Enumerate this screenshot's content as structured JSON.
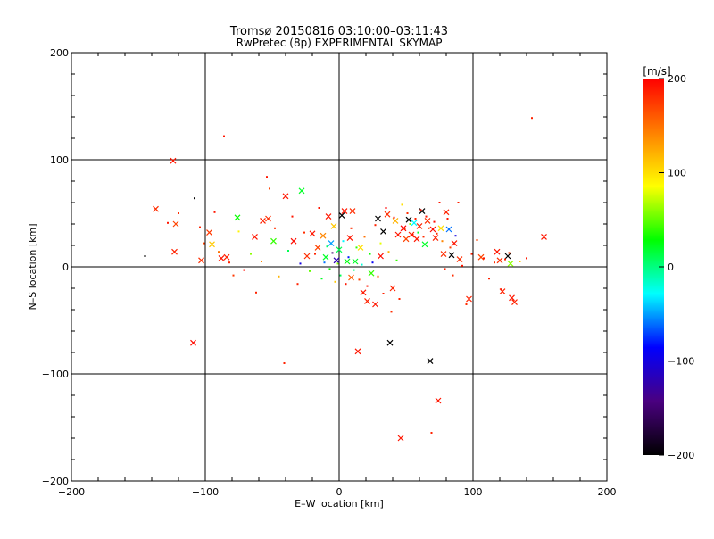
{
  "chart_data": {
    "type": "scatter",
    "title": "Tromsø 20150816 03:10:00–03:11:43",
    "subtitle": "RwPretec (8p) EXPERIMENTAL SKYMAP",
    "xlabel": "E–W location [km]",
    "ylabel": "N–S location [km]",
    "xlim": [
      -200,
      200
    ],
    "ylim": [
      -200,
      200
    ],
    "xticks": [
      -200,
      -100,
      0,
      100,
      200
    ],
    "yticks": [
      -200,
      -100,
      0,
      100,
      200
    ],
    "grid": true,
    "colorbar": {
      "label": "[m/s]",
      "min": -200,
      "max": 200,
      "ticks": [
        -200,
        -100,
        0,
        100,
        200
      ],
      "colormap": [
        "#000000",
        "#4a0080",
        "#0000ff",
        "#00ffff",
        "#00ff00",
        "#ffff00",
        "#ff8000",
        "#ff0000"
      ]
    },
    "series": [
      {
        "marker": "x",
        "points": [
          [
            -137,
            54,
            180
          ],
          [
            -124,
            99,
            190
          ],
          [
            -122,
            40,
            170
          ],
          [
            -123,
            14,
            185
          ],
          [
            -109,
            -71,
            195
          ],
          [
            -103,
            6,
            180
          ],
          [
            -97,
            32,
            175
          ],
          [
            -95,
            21,
            110
          ],
          [
            -88,
            8,
            190
          ],
          [
            -84,
            9,
            185
          ],
          [
            -76,
            46,
            30
          ],
          [
            -63,
            28,
            190
          ],
          [
            -57,
            43,
            185
          ],
          [
            -53,
            45,
            180
          ],
          [
            -49,
            24,
            40
          ],
          [
            -40,
            66,
            190
          ],
          [
            -34,
            24,
            195
          ],
          [
            -28,
            71,
            20
          ],
          [
            -24,
            10,
            180
          ],
          [
            -20,
            31,
            190
          ],
          [
            -16,
            18,
            170
          ],
          [
            -12,
            29,
            140
          ],
          [
            -10,
            9,
            20
          ],
          [
            -8,
            47,
            190
          ],
          [
            -6,
            22,
            -50
          ],
          [
            -4,
            38,
            110
          ],
          [
            -2,
            6,
            -120
          ],
          [
            0,
            16,
            10
          ],
          [
            2,
            48,
            -200
          ],
          [
            4,
            52,
            190
          ],
          [
            6,
            5,
            25
          ],
          [
            8,
            27,
            190
          ],
          [
            9,
            -10,
            160
          ],
          [
            10,
            52,
            180
          ],
          [
            12,
            5,
            20
          ],
          [
            14,
            -79,
            190
          ],
          [
            16,
            18,
            100
          ],
          [
            18,
            -24,
            190
          ],
          [
            21,
            -32,
            185
          ],
          [
            24,
            -6,
            40
          ],
          [
            27,
            -35,
            190
          ],
          [
            29,
            45,
            -200
          ],
          [
            31,
            10,
            195
          ],
          [
            33,
            33,
            -200
          ],
          [
            36,
            49,
            180
          ],
          [
            38,
            -71,
            -200
          ],
          [
            40,
            -20,
            185
          ],
          [
            42,
            43,
            120
          ],
          [
            44,
            30,
            190
          ],
          [
            46,
            -160,
            190
          ],
          [
            48,
            36,
            200
          ],
          [
            50,
            26,
            170
          ],
          [
            52,
            44,
            -200
          ],
          [
            54,
            30,
            185
          ],
          [
            56,
            41,
            -30
          ],
          [
            58,
            26,
            190
          ],
          [
            60,
            38,
            185
          ],
          [
            62,
            52,
            -200
          ],
          [
            64,
            21,
            20
          ],
          [
            66,
            43,
            180
          ],
          [
            68,
            -88,
            -200
          ],
          [
            70,
            35,
            195
          ],
          [
            72,
            27,
            185
          ],
          [
            74,
            -125,
            190
          ],
          [
            76,
            36,
            100
          ],
          [
            78,
            12,
            180
          ],
          [
            80,
            51,
            185
          ],
          [
            82,
            35,
            -60
          ],
          [
            84,
            11,
            -200
          ],
          [
            86,
            22,
            190
          ],
          [
            90,
            7,
            180
          ],
          [
            97,
            -30,
            185
          ],
          [
            106,
            9,
            170
          ],
          [
            118,
            14,
            190
          ],
          [
            120,
            6,
            180
          ],
          [
            122,
            -23,
            185
          ],
          [
            126,
            10,
            -200
          ],
          [
            128,
            3,
            60
          ],
          [
            129,
            -29,
            190
          ],
          [
            131,
            -33,
            185
          ],
          [
            153,
            28,
            190
          ]
        ]
      },
      {
        "marker": "dot",
        "points": [
          [
            -145,
            10,
            -200
          ],
          [
            -128,
            41,
            190
          ],
          [
            -120,
            50,
            180
          ],
          [
            -108,
            64,
            -200
          ],
          [
            -104,
            37,
            185
          ],
          [
            -101,
            22,
            170
          ],
          [
            -93,
            51,
            190
          ],
          [
            -90,
            14,
            150
          ],
          [
            -86,
            122,
            190
          ],
          [
            -82,
            4,
            185
          ],
          [
            -79,
            -8,
            175
          ],
          [
            -75,
            33,
            90
          ],
          [
            -71,
            -3,
            195
          ],
          [
            -66,
            12,
            60
          ],
          [
            -62,
            -24,
            185
          ],
          [
            -58,
            5,
            140
          ],
          [
            -54,
            84,
            190
          ],
          [
            -52,
            73,
            170
          ],
          [
            -48,
            36,
            180
          ],
          [
            -45,
            -9,
            120
          ],
          [
            -41,
            -90,
            185
          ],
          [
            -38,
            15,
            10
          ],
          [
            -35,
            47,
            190
          ],
          [
            -31,
            -16,
            185
          ],
          [
            -29,
            3,
            -100
          ],
          [
            -26,
            32,
            180
          ],
          [
            -22,
            -4,
            50
          ],
          [
            -18,
            12,
            185
          ],
          [
            -15,
            55,
            190
          ],
          [
            -13,
            -11,
            20
          ],
          [
            -11,
            4,
            -60
          ],
          [
            -9,
            19,
            5
          ],
          [
            -7,
            -2,
            30
          ],
          [
            -5,
            13,
            -150
          ],
          [
            -3,
            -14,
            110
          ],
          [
            -1,
            3,
            60
          ],
          [
            1,
            -8,
            10
          ],
          [
            3,
            24,
            -30
          ],
          [
            5,
            -16,
            190
          ],
          [
            7,
            9,
            -80
          ],
          [
            9,
            36,
            180
          ],
          [
            11,
            -3,
            0
          ],
          [
            13,
            18,
            40
          ],
          [
            15,
            -12,
            170
          ],
          [
            17,
            2,
            -20
          ],
          [
            19,
            28,
            150
          ],
          [
            21,
            -18,
            190
          ],
          [
            23,
            12,
            30
          ],
          [
            25,
            4,
            -90
          ],
          [
            27,
            39,
            185
          ],
          [
            29,
            -9,
            160
          ],
          [
            31,
            22,
            80
          ],
          [
            33,
            -25,
            185
          ],
          [
            35,
            55,
            200
          ],
          [
            37,
            14,
            120
          ],
          [
            39,
            -42,
            180
          ],
          [
            41,
            46,
            190
          ],
          [
            43,
            6,
            40
          ],
          [
            45,
            -30,
            185
          ],
          [
            47,
            58,
            100
          ],
          [
            49,
            35,
            185
          ],
          [
            51,
            50,
            180
          ],
          [
            53,
            40,
            60
          ],
          [
            55,
            30,
            190
          ],
          [
            57,
            45,
            185
          ],
          [
            59,
            32,
            20
          ],
          [
            61,
            53,
            190
          ],
          [
            63,
            28,
            180
          ],
          [
            65,
            47,
            190
          ],
          [
            67,
            36,
            170
          ],
          [
            69,
            -155,
            185
          ],
          [
            71,
            42,
            195
          ],
          [
            73,
            31,
            180
          ],
          [
            75,
            60,
            190
          ],
          [
            77,
            24,
            140
          ],
          [
            79,
            -2,
            185
          ],
          [
            81,
            45,
            190
          ],
          [
            83,
            18,
            170
          ],
          [
            85,
            -8,
            180
          ],
          [
            87,
            29,
            -100
          ],
          [
            89,
            60,
            185
          ],
          [
            92,
            1,
            190
          ],
          [
            95,
            -35,
            180
          ],
          [
            99,
            12,
            185
          ],
          [
            103,
            25,
            170
          ],
          [
            108,
            8,
            190
          ],
          [
            112,
            -11,
            185
          ],
          [
            116,
            4,
            180
          ],
          [
            121,
            -21,
            190
          ],
          [
            124,
            7,
            185
          ],
          [
            127,
            13,
            175
          ],
          [
            135,
            5,
            110
          ],
          [
            140,
            8,
            190
          ],
          [
            144,
            139,
            185
          ]
        ]
      }
    ]
  }
}
